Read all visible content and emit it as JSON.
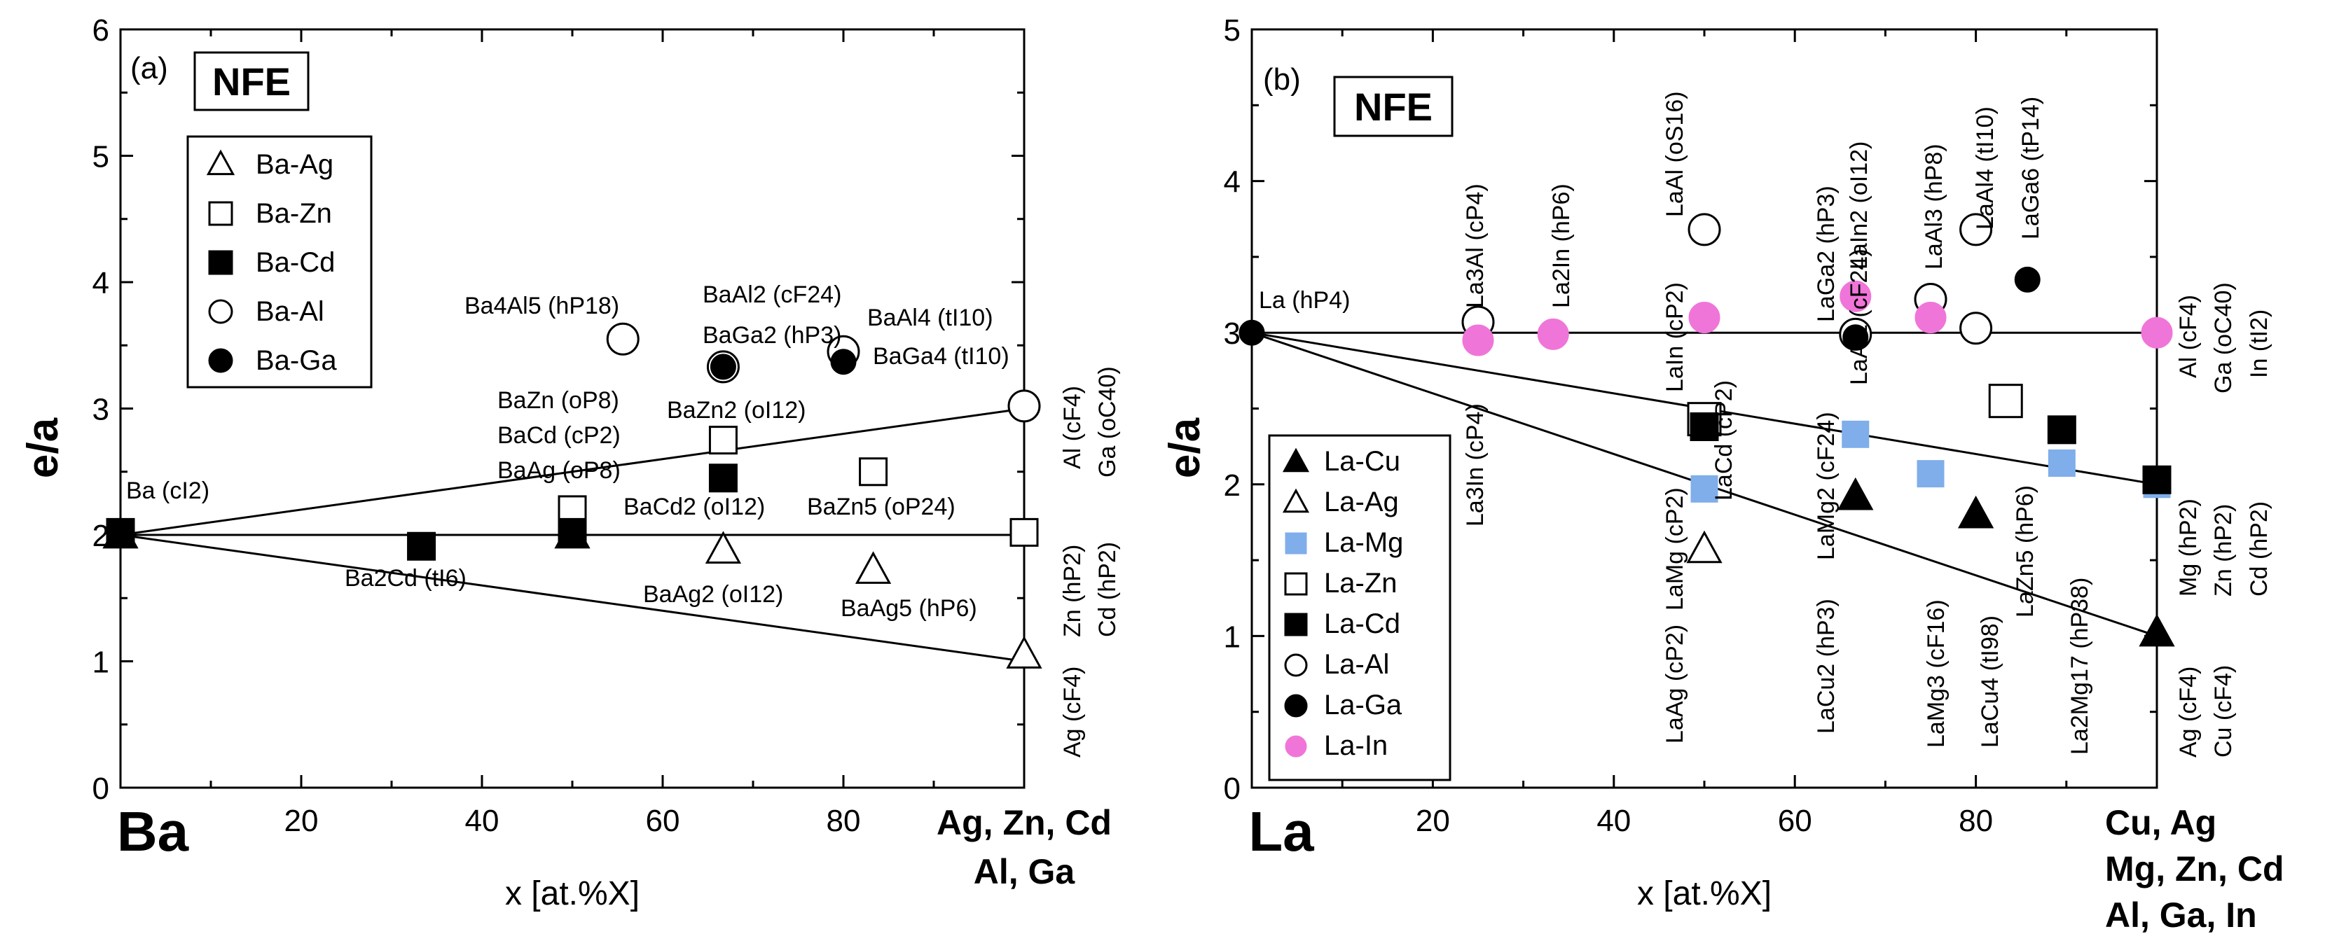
{
  "chart_data": [
    {
      "type": "scatter",
      "panel_label": "(a)",
      "box_label": "NFE",
      "xlabel": "x [at.%X]",
      "ylabel": "e/a",
      "xlim": [
        0,
        100
      ],
      "ylim": [
        0,
        6
      ],
      "xticks": [
        20,
        40,
        60,
        80
      ],
      "yticks": [
        0,
        1,
        2,
        3,
        4,
        5,
        6
      ],
      "x_left_label": "Ba",
      "x_right_label": [
        "Ag, Zn, Cd",
        "Al, Ga"
      ],
      "legend": [
        {
          "name": "Ba-Ag",
          "marker": "triangle-open"
        },
        {
          "name": "Ba-Zn",
          "marker": "square-open"
        },
        {
          "name": "Ba-Cd",
          "marker": "square-filled"
        },
        {
          "name": "Ba-Al",
          "marker": "circle-open"
        },
        {
          "name": "Ba-Ga",
          "marker": "circle-filled"
        }
      ],
      "lines": [
        {
          "from": [
            0,
            2.0
          ],
          "to": [
            100,
            3.0
          ]
        },
        {
          "from": [
            0,
            2.0
          ],
          "to": [
            100,
            2.0
          ]
        },
        {
          "from": [
            0,
            2.0
          ],
          "to": [
            100,
            1.0
          ]
        }
      ],
      "series": [
        {
          "name": "Ba-Ag",
          "marker": "triangle-open",
          "points": [
            [
              0,
              2.0
            ],
            [
              50,
              2.0
            ],
            [
              66.7,
              1.88
            ],
            [
              83.3,
              1.72
            ],
            [
              100,
              1.05
            ]
          ]
        },
        {
          "name": "Ba-Zn",
          "marker": "square-open",
          "points": [
            [
              50,
              2.2
            ],
            [
              66.7,
              2.75
            ],
            [
              83.3,
              2.5
            ],
            [
              100,
              2.02
            ]
          ]
        },
        {
          "name": "Ba-Cd",
          "marker": "square-filled",
          "points": [
            [
              0,
              2.02
            ],
            [
              33.3,
              1.91
            ],
            [
              50,
              2.02
            ],
            [
              66.7,
              2.45
            ]
          ]
        },
        {
          "name": "Ba-Al",
          "marker": "circle-open",
          "points": [
            [
              55.6,
              3.55
            ],
            [
              66.7,
              3.33
            ],
            [
              80,
              3.45
            ],
            [
              100,
              3.02
            ]
          ]
        },
        {
          "name": "Ba-Ga",
          "marker": "circle-filled",
          "points": [
            [
              66.7,
              3.33
            ],
            [
              80,
              3.37
            ]
          ]
        }
      ],
      "annotations": [
        {
          "text": "Ba (cI2)"
        },
        {
          "text": "Ba4Al5 (hP18)"
        },
        {
          "text": "BaAl2 (cF24)"
        },
        {
          "text": "BaGa2 (hP3)"
        },
        {
          "text": "BaAl4 (tI10)"
        },
        {
          "text": "BaGa4 (tI10)"
        },
        {
          "text": "BaZn (oP8)"
        },
        {
          "text": "BaCd (cP2)"
        },
        {
          "text": "BaAg (oP8)"
        },
        {
          "text": "BaZn2 (oI12)"
        },
        {
          "text": "BaCd2 (oI12)"
        },
        {
          "text": "BaZn5 (oP24)"
        },
        {
          "text": "Ba2Cd (tI6)"
        },
        {
          "text": "BaAg2 (oI12)"
        },
        {
          "text": "BaAg5 (hP6)"
        }
      ],
      "right_labels": [
        {
          "text": "Al (cF4)"
        },
        {
          "text": "Ga (oC40)"
        },
        {
          "text": "Zn (hP2)"
        },
        {
          "text": "Cd (hP2)"
        },
        {
          "text": "Ag (cF4)"
        }
      ]
    },
    {
      "type": "scatter",
      "panel_label": "(b)",
      "box_label": "NFE",
      "xlabel": "x [at.%X]",
      "ylabel": "e/a",
      "xlim": [
        0,
        100
      ],
      "ylim": [
        0,
        5
      ],
      "xticks": [
        20,
        40,
        60,
        80
      ],
      "yticks": [
        0,
        1,
        2,
        3,
        4,
        5
      ],
      "x_left_label": "La",
      "x_right_label": [
        "Cu, Ag",
        "Mg, Zn, Cd",
        "Al, Ga, In"
      ],
      "legend": [
        {
          "name": "La-Cu",
          "marker": "triangle-filled"
        },
        {
          "name": "La-Ag",
          "marker": "triangle-open"
        },
        {
          "name": "La-Mg",
          "marker": "square-blue"
        },
        {
          "name": "La-Zn",
          "marker": "square-open"
        },
        {
          "name": "La-Cd",
          "marker": "square-filled"
        },
        {
          "name": "La-Al",
          "marker": "circle-open"
        },
        {
          "name": "La-Ga",
          "marker": "circle-filled"
        },
        {
          "name": "La-In",
          "marker": "circle-pink"
        }
      ],
      "lines": [
        {
          "from": [
            0,
            3.0
          ],
          "to": [
            100,
            3.0
          ]
        },
        {
          "from": [
            0,
            3.0
          ],
          "to": [
            100,
            2.0
          ]
        },
        {
          "from": [
            0,
            3.0
          ],
          "to": [
            100,
            1.0
          ]
        }
      ],
      "series": [
        {
          "name": "La-Cu",
          "marker": "triangle-filled",
          "points": [
            [
              66.7,
              1.92
            ],
            [
              80,
              1.8
            ],
            [
              100,
              1.02
            ]
          ]
        },
        {
          "name": "La-Ag",
          "marker": "triangle-open",
          "points": [
            [
              50,
              1.57
            ]
          ]
        },
        {
          "name": "La-Mg",
          "marker": "square-blue",
          "points": [
            [
              50,
              1.97
            ],
            [
              66.7,
              2.33
            ],
            [
              75,
              2.07
            ],
            [
              89.5,
              2.14
            ],
            [
              100,
              2.0
            ]
          ]
        },
        {
          "name": "La-Zn",
          "marker": "square-open",
          "points": [
            [
              50,
              2.43
            ],
            [
              83.3,
              2.55
            ]
          ]
        },
        {
          "name": "La-Cd",
          "marker": "square-filled",
          "points": [
            [
              50,
              2.38
            ],
            [
              89.5,
              2.36
            ],
            [
              100,
              2.03
            ]
          ]
        },
        {
          "name": "La-Al",
          "marker": "circle-open",
          "points": [
            [
              25,
              3.07
            ],
            [
              50,
              3.68
            ],
            [
              66.7,
              2.99
            ],
            [
              75,
              3.22
            ],
            [
              80,
              3.03
            ],
            [
              80,
              3.68
            ]
          ]
        },
        {
          "name": "La-Ga",
          "marker": "circle-filled",
          "points": [
            [
              0,
              3.0
            ],
            [
              66.7,
              2.97
            ],
            [
              85.7,
              3.35
            ],
            [
              100,
              3.0
            ]
          ]
        },
        {
          "name": "La-In",
          "marker": "circle-pink",
          "points": [
            [
              25,
              2.95
            ],
            [
              33.3,
              2.99
            ],
            [
              50,
              3.1
            ],
            [
              66.7,
              3.24
            ],
            [
              75,
              3.1
            ],
            [
              100,
              3.0
            ]
          ]
        }
      ],
      "annotations": [
        {
          "text": "La (hP4)"
        },
        {
          "text": "La3Al (cP4)"
        },
        {
          "text": "La2In (hP6)"
        },
        {
          "text": "LaIn (cP2)"
        },
        {
          "text": "LaAl (oS16)"
        },
        {
          "text": "LaGa2 (hP3)"
        },
        {
          "text": "LaIn2 (oI12)"
        },
        {
          "text": "LaAl2 (cF24)"
        },
        {
          "text": "LaAl3 (hP8)"
        },
        {
          "text": "LaAl4 (tI10)"
        },
        {
          "text": "LaGa6 (tP14)"
        },
        {
          "text": "La3In (cP4)"
        },
        {
          "text": "LaMg (cP2)"
        },
        {
          "text": "LaAg (cP2)"
        },
        {
          "text": "LaCd (cP2)"
        },
        {
          "text": "LaMg2 (cF24)"
        },
        {
          "text": "LaCu2 (hP3)"
        },
        {
          "text": "LaMg3 (cF16)"
        },
        {
          "text": "LaCu4 (tI98)"
        },
        {
          "text": "LaZn5 (hP6)"
        },
        {
          "text": "La2Mg17 (hP38)"
        }
      ],
      "right_labels": [
        {
          "text": "Al (cF4)"
        },
        {
          "text": "Ga (oC40)"
        },
        {
          "text": "In (tI2)"
        },
        {
          "text": "Mg (hP2)"
        },
        {
          "text": "Zn (hP2)"
        },
        {
          "text": "Cd (hP2)"
        },
        {
          "text": "Ag (cF4)"
        },
        {
          "text": "Cu (cF4)"
        }
      ]
    }
  ],
  "colors": {
    "axis": "#000000",
    "mg_blue": "#7FAEEA",
    "in_pink": "#F075D9"
  }
}
